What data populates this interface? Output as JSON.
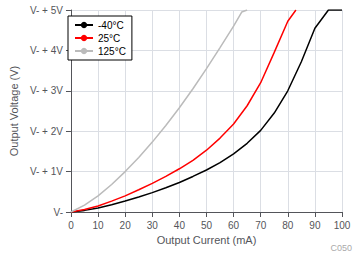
{
  "chart_data": {
    "type": "line",
    "xlabel": "Output Current (mA)",
    "ylabel": "Output Voltage (V)",
    "xlim": [
      0,
      100
    ],
    "ylim": [
      0,
      5
    ],
    "xticks": [
      0,
      10,
      20,
      30,
      40,
      50,
      60,
      70,
      80,
      90,
      100
    ],
    "yticks": [
      {
        "value": 0,
        "label": "V-"
      },
      {
        "value": 1,
        "label": "V- + 1V"
      },
      {
        "value": 2,
        "label": "V- + 2V"
      },
      {
        "value": 3,
        "label": "V- + 3V"
      },
      {
        "value": 4,
        "label": "V- + 4V"
      },
      {
        "value": 5,
        "label": "V- + 5V"
      }
    ],
    "grid": true,
    "legend": "upper left",
    "annotations": [
      "C050"
    ],
    "series": [
      {
        "name": "-40°C",
        "color": "#000000",
        "x": [
          0,
          5,
          10,
          15,
          20,
          25,
          30,
          35,
          40,
          45,
          50,
          55,
          60,
          65,
          70,
          75,
          80,
          85,
          90,
          95,
          100
        ],
        "values": [
          0,
          0.04,
          0.1,
          0.18,
          0.27,
          0.37,
          0.48,
          0.6,
          0.73,
          0.88,
          1.04,
          1.22,
          1.44,
          1.7,
          2.02,
          2.45,
          3.0,
          3.72,
          4.55,
          5.0,
          5.0
        ]
      },
      {
        "name": "25°C",
        "color": "#ff0000",
        "x": [
          0,
          5,
          10,
          15,
          20,
          25,
          30,
          35,
          40,
          45,
          50,
          55,
          60,
          65,
          70,
          75,
          80,
          83
        ],
        "values": [
          0,
          0.06,
          0.15,
          0.27,
          0.4,
          0.55,
          0.71,
          0.88,
          1.07,
          1.28,
          1.53,
          1.83,
          2.18,
          2.63,
          3.2,
          3.95,
          4.72,
          5.0
        ]
      },
      {
        "name": "125°C",
        "color": "#bbbbbb",
        "x": [
          0,
          5,
          10,
          15,
          20,
          25,
          30,
          35,
          40,
          45,
          50,
          55,
          60,
          63,
          65
        ],
        "values": [
          0,
          0.17,
          0.4,
          0.68,
          1.0,
          1.35,
          1.73,
          2.14,
          2.58,
          3.05,
          3.55,
          4.07,
          4.6,
          4.95,
          5.0
        ]
      }
    ]
  }
}
